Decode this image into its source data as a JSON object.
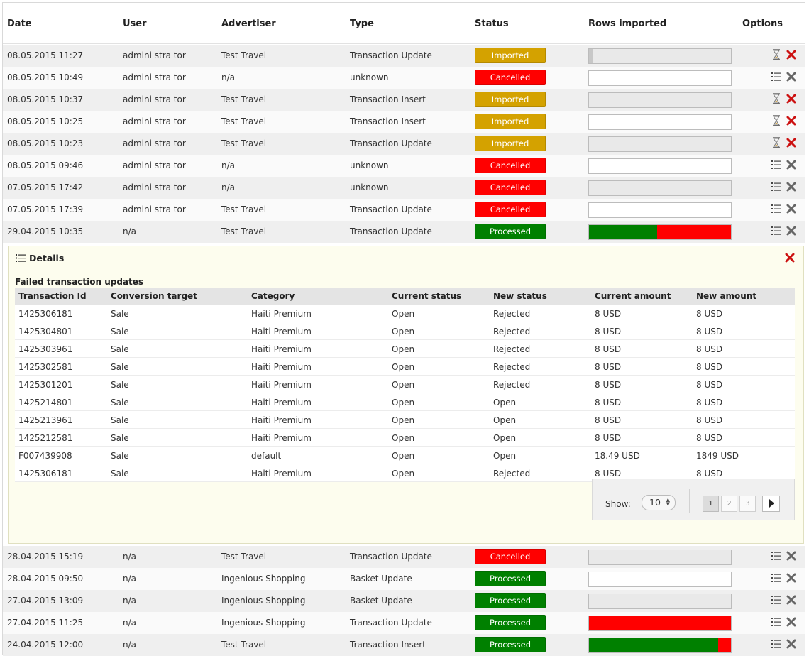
{
  "header": {
    "date": "Date",
    "user": "User",
    "advertiser": "Advertiser",
    "type": "Type",
    "status": "Status",
    "rows_imported": "Rows imported",
    "options": "Options"
  },
  "rows_top": [
    {
      "date": "08.05.2015 11:27",
      "user": "admini stra tor",
      "advertiser": "Test Travel",
      "type": "Transaction Update",
      "status": "Imported",
      "progress": "started"
    },
    {
      "date": "08.05.2015 10:49",
      "user": "admini stra tor",
      "advertiser": "n/a",
      "type": "unknown",
      "status": "Cancelled",
      "progress": "empty"
    },
    {
      "date": "08.05.2015 10:37",
      "user": "admini stra tor",
      "advertiser": "Test Travel",
      "type": "Transaction Insert",
      "status": "Imported",
      "progress": "empty"
    },
    {
      "date": "08.05.2015 10:25",
      "user": "admini stra tor",
      "advertiser": "Test Travel",
      "type": "Transaction Insert",
      "status": "Imported",
      "progress": "empty"
    },
    {
      "date": "08.05.2015 10:23",
      "user": "admini stra tor",
      "advertiser": "Test Travel",
      "type": "Transaction Update",
      "status": "Imported",
      "progress": "empty"
    },
    {
      "date": "08.05.2015 09:46",
      "user": "admini stra tor",
      "advertiser": "n/a",
      "type": "unknown",
      "status": "Cancelled",
      "progress": "empty"
    },
    {
      "date": "07.05.2015 17:42",
      "user": "admini stra tor",
      "advertiser": "n/a",
      "type": "unknown",
      "status": "Cancelled",
      "progress": "empty"
    },
    {
      "date": "07.05.2015 17:39",
      "user": "admini stra tor",
      "advertiser": "Test Travel",
      "type": "Transaction Update",
      "status": "Cancelled",
      "progress": "empty"
    },
    {
      "date": "29.04.2015 10:35",
      "user": "n/a",
      "advertiser": "Test Travel",
      "type": "Transaction Update",
      "status": "Processed",
      "progress": "partial",
      "success_fraction": 0.48
    }
  ],
  "details": {
    "title": "Details",
    "subtitle": "Failed transaction updates",
    "columns": [
      "Transaction Id",
      "Conversion target",
      "Category",
      "Current status",
      "New status",
      "Current amount",
      "New amount"
    ],
    "rows": [
      [
        "1425306181",
        "Sale",
        "Haiti Premium",
        "Open",
        "Rejected",
        "8 USD",
        "8 USD"
      ],
      [
        "1425304801",
        "Sale",
        "Haiti Premium",
        "Open",
        "Rejected",
        "8 USD",
        "8 USD"
      ],
      [
        "1425303961",
        "Sale",
        "Haiti Premium",
        "Open",
        "Rejected",
        "8 USD",
        "8 USD"
      ],
      [
        "1425302581",
        "Sale",
        "Haiti Premium",
        "Open",
        "Rejected",
        "8 USD",
        "8 USD"
      ],
      [
        "1425301201",
        "Sale",
        "Haiti Premium",
        "Open",
        "Rejected",
        "8 USD",
        "8 USD"
      ],
      [
        "1425214801",
        "Sale",
        "Haiti Premium",
        "Open",
        "Open",
        "8 USD",
        "8 USD"
      ],
      [
        "1425213961",
        "Sale",
        "Haiti Premium",
        "Open",
        "Open",
        "8 USD",
        "8 USD"
      ],
      [
        "1425212581",
        "Sale",
        "Haiti Premium",
        "Open",
        "Open",
        "8 USD",
        "8 USD"
      ],
      [
        "F007439908",
        "Sale",
        "default",
        "Open",
        "Open",
        "18.49 USD",
        "1849 USD"
      ],
      [
        "1425306181",
        "Sale",
        "Haiti Premium",
        "Open",
        "Rejected",
        "8 USD",
        "8 USD"
      ]
    ],
    "pager": {
      "show_label": "Show:",
      "show_value": "10",
      "pages": [
        "1",
        "2",
        "3"
      ],
      "active_page": "1"
    }
  },
  "rows_bottom": [
    {
      "date": "28.04.2015 15:19",
      "user": "n/a",
      "advertiser": "Test Travel",
      "type": "Transaction Update",
      "status": "Cancelled",
      "progress": "empty"
    },
    {
      "date": "28.04.2015 09:50",
      "user": "n/a",
      "advertiser": "Ingenious Shopping",
      "type": "Basket Update",
      "status": "Processed",
      "progress": "empty"
    },
    {
      "date": "27.04.2015 13:09",
      "user": "n/a",
      "advertiser": "Ingenious Shopping",
      "type": "Basket Update",
      "status": "Processed",
      "progress": "empty"
    },
    {
      "date": "27.04.2015 11:25",
      "user": "n/a",
      "advertiser": "Ingenious Shopping",
      "type": "Transaction Update",
      "status": "Processed",
      "progress": "partial",
      "success_fraction": 0.0
    },
    {
      "date": "24.04.2015 12:00",
      "user": "n/a",
      "advertiser": "Test Travel",
      "type": "Transaction Insert",
      "status": "Processed",
      "progress": "partial",
      "success_fraction": 0.91
    }
  ],
  "colors": {
    "imported": "#d4a200",
    "cancelled": "#ff0000",
    "processed": "#008000",
    "details_bg": "#fdfdee"
  },
  "icons": {
    "imported_options": [
      "hourglass-icon",
      "delete-red-icon"
    ],
    "other_options": [
      "details-list-icon",
      "delete-grey-icon"
    ],
    "details_header": "details-list-icon",
    "details_close": "close-red-icon",
    "pager_next": "next-page-arrow-icon"
  }
}
